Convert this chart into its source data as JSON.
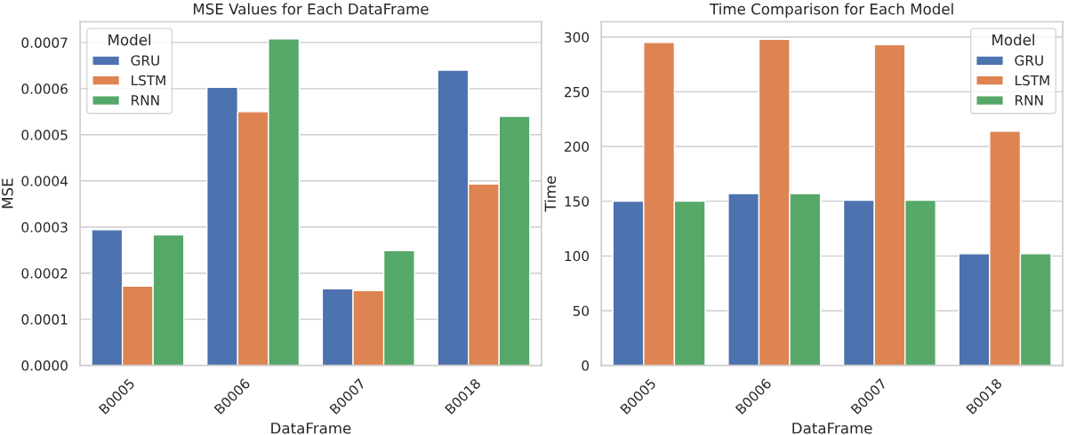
{
  "chart_data": [
    {
      "type": "bar",
      "title": "MSE Values for Each DataFrame",
      "xlabel": "DataFrame",
      "ylabel": "MSE",
      "legend_title": "Model",
      "legend": "top left",
      "grid": "y",
      "categories": [
        "B0005",
        "B0006",
        "B0007",
        "B0018"
      ],
      "ylim": [
        0,
        0.000745
      ],
      "yticks": [
        {
          "value": 0,
          "label": "0.0000"
        },
        {
          "value": 0.0001,
          "label": "0.0001"
        },
        {
          "value": 0.0002,
          "label": "0.0002"
        },
        {
          "value": 0.0003,
          "label": "0.0003"
        },
        {
          "value": 0.0004,
          "label": "0.0004"
        },
        {
          "value": 0.0005,
          "label": "0.0005"
        },
        {
          "value": 0.0006,
          "label": "0.0006"
        },
        {
          "value": 0.0007,
          "label": "0.0007"
        }
      ],
      "series": [
        {
          "name": "GRU",
          "color": "#4c72b0",
          "values": [
            0.000294,
            0.000603,
            0.000166,
            0.00064
          ]
        },
        {
          "name": "LSTM",
          "color": "#dd8452",
          "values": [
            0.000172,
            0.00055,
            0.000162,
            0.000393
          ]
        },
        {
          "name": "RNN",
          "color": "#55a868",
          "values": [
            0.000283,
            0.000708,
            0.000249,
            0.00054
          ]
        }
      ]
    },
    {
      "type": "bar",
      "title": "Time Comparison for Each Model",
      "xlabel": "DataFrame",
      "ylabel": "Time",
      "legend_title": "Model",
      "legend": "top right",
      "grid": "y",
      "categories": [
        "B0005",
        "B0006",
        "B0007",
        "B0018"
      ],
      "ylim": [
        0,
        314
      ],
      "yticks": [
        0,
        50,
        100,
        150,
        200,
        250,
        300
      ],
      "series": [
        {
          "name": "GRU",
          "color": "#4c72b0",
          "values": [
            150,
            157,
            151,
            102
          ]
        },
        {
          "name": "LSTM",
          "color": "#dd8452",
          "values": [
            295,
            298,
            293,
            214
          ]
        },
        {
          "name": "RNN",
          "color": "#55a868",
          "values": [
            150,
            157,
            151,
            102
          ]
        }
      ]
    }
  ]
}
